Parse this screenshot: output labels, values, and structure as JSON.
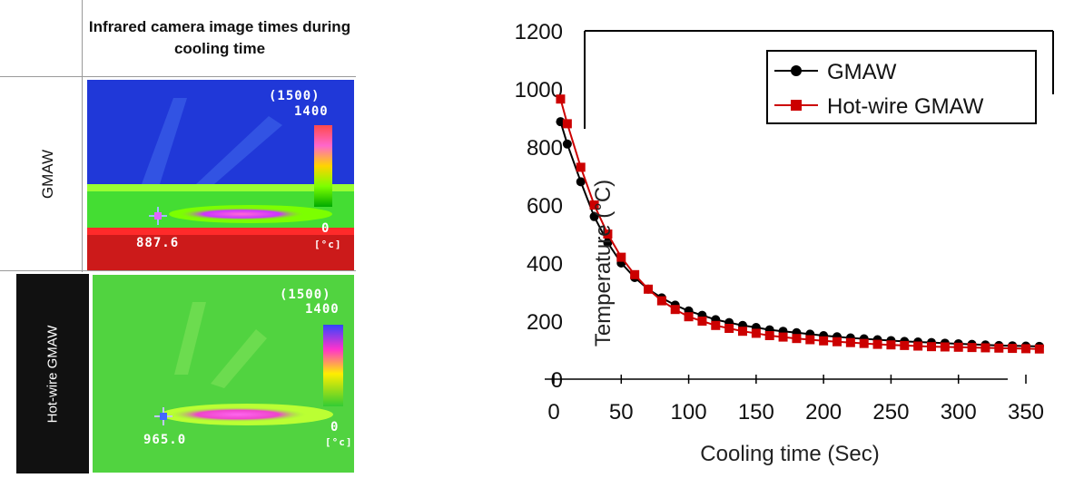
{
  "left_table": {
    "header": "Infrared camera image times during cooling time",
    "rows": [
      {
        "label": "GMAW",
        "scale_top": "(1500)",
        "scale_max": "1400",
        "scale_min": "0",
        "unit": "[°c]",
        "reading": "887.6"
      },
      {
        "label": "Hot-wire GMAW",
        "scale_top": "(1500)",
        "scale_max": "1400",
        "scale_min": "0",
        "unit": "[°c]",
        "reading": "965.0"
      }
    ]
  },
  "chart_data": {
    "type": "line",
    "xlabel": "Cooling time (Sec)",
    "ylabel": "Temperature (°C)",
    "xlim": [
      0,
      350
    ],
    "ylim": [
      0,
      1200
    ],
    "x_ticks": [
      0,
      50,
      100,
      150,
      200,
      250,
      300,
      350
    ],
    "y_ticks": [
      0,
      200,
      400,
      600,
      800,
      1000,
      1200
    ],
    "x_tick_labels": [
      "0",
      "50",
      "100",
      "150",
      "200",
      "250",
      "300",
      "350"
    ],
    "y_tick_labels": [
      "0",
      "200",
      "400",
      "600",
      "800",
      "1000",
      "1200"
    ],
    "legend_position": "top-right",
    "series": [
      {
        "name": "GMAW",
        "color": "#000000",
        "marker": "circle",
        "x": [
          5,
          10,
          20,
          30,
          40,
          50,
          60,
          70,
          80,
          90,
          100,
          110,
          120,
          130,
          140,
          150,
          160,
          170,
          180,
          190,
          200,
          210,
          220,
          230,
          240,
          250,
          260,
          270,
          280,
          290,
          300,
          310,
          320,
          330,
          340,
          350,
          360
        ],
        "y": [
          887,
          810,
          680,
          560,
          470,
          400,
          350,
          310,
          280,
          255,
          235,
          220,
          205,
          195,
          185,
          178,
          170,
          165,
          160,
          155,
          150,
          146,
          142,
          139,
          136,
          133,
          130,
          128,
          126,
          124,
          122,
          120,
          118,
          116,
          115,
          114,
          113
        ]
      },
      {
        "name": "Hot-wire GMAW",
        "color": "#cc0000",
        "marker": "square",
        "x": [
          5,
          10,
          20,
          30,
          40,
          50,
          60,
          70,
          80,
          90,
          100,
          110,
          120,
          130,
          140,
          150,
          160,
          170,
          180,
          190,
          200,
          210,
          220,
          230,
          240,
          250,
          260,
          270,
          280,
          290,
          300,
          310,
          320,
          330,
          340,
          350,
          360
        ],
        "y": [
          965,
          880,
          730,
          600,
          500,
          420,
          360,
          310,
          270,
          240,
          215,
          200,
          185,
          175,
          165,
          158,
          150,
          145,
          140,
          136,
          132,
          129,
          126,
          123,
          120,
          118,
          116,
          114,
          112,
          111,
          110,
          109,
          108,
          107,
          106,
          105,
          104
        ]
      }
    ]
  }
}
